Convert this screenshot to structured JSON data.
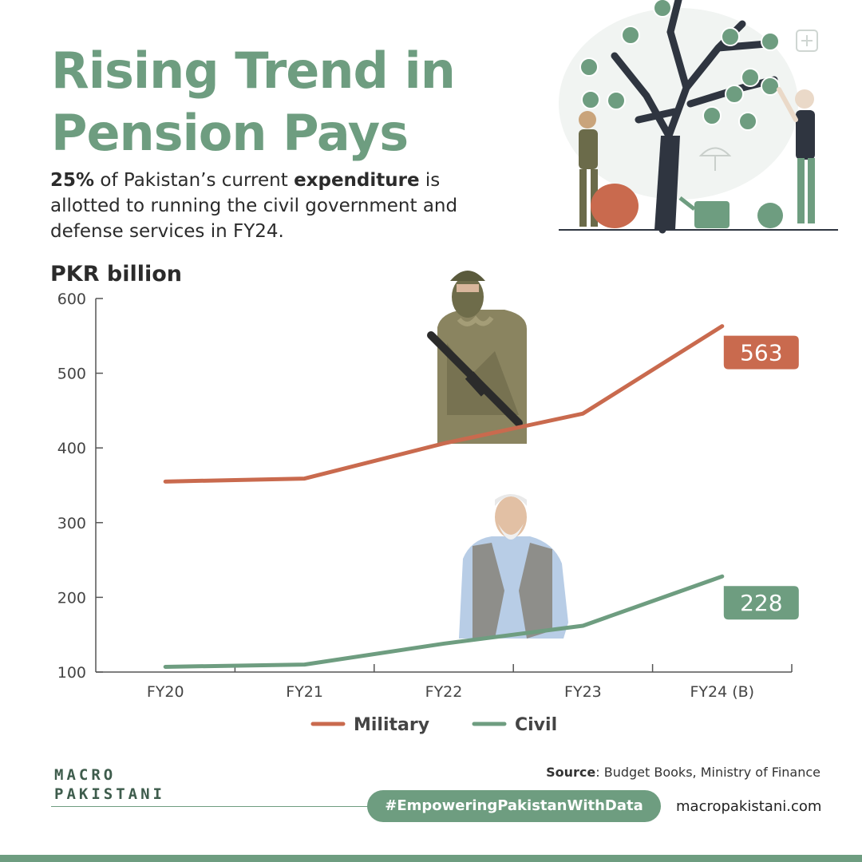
{
  "header": {
    "title_line1": "Rising Trend in",
    "title_line2": "Pension Pays",
    "subtitle_bold1": "25%",
    "subtitle_text1": " of Pakistan’s current ",
    "subtitle_bold2": "expenditure",
    "subtitle_text2": " is allotted to running the civil government and defense services in FY24."
  },
  "colors": {
    "title": "#6e9d80",
    "military": "#c96a4e",
    "civil": "#6e9d80",
    "axis": "#555555"
  },
  "chart_data": {
    "type": "line",
    "ylabel": "PKR billion",
    "categories": [
      "FY20",
      "FY21",
      "FY22",
      "FY23",
      "FY24 (B)"
    ],
    "ylim": [
      100,
      600
    ],
    "yticks": [
      100,
      200,
      300,
      400,
      500,
      600
    ],
    "grid": false,
    "legend_position": "bottom-center",
    "series": [
      {
        "name": "Military",
        "values": [
          355,
          359,
          406,
          446,
          563
        ],
        "color": "#c96a4e",
        "end_label": "563"
      },
      {
        "name": "Civil",
        "values": [
          107,
          110,
          138,
          162,
          228
        ],
        "color": "#6e9d80",
        "end_label": "228"
      }
    ]
  },
  "footer": {
    "source_label": "Source",
    "source_text": ": Budget Books, Ministry of Finance",
    "hashtag": "#EmpoweringPakistanWithData",
    "website": "macropakistani.com",
    "logo_line1": "MACRO",
    "logo_line2": "PAKISTANI"
  },
  "icons": [
    "money-tree-illustration",
    "soldier-photo",
    "elderly-man-photo",
    "plus-icon"
  ]
}
